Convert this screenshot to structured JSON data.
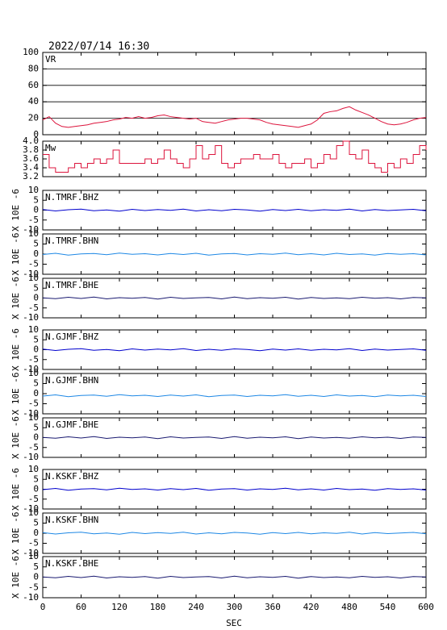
{
  "title": "2022/07/14 16:30",
  "xlabel": "SEC",
  "xlim": [
    0,
    600
  ],
  "xticks": [
    0,
    60,
    120,
    180,
    240,
    300,
    360,
    420,
    480,
    540,
    600
  ],
  "chart_data": [
    {
      "type": "line",
      "grid": true,
      "ylim": [
        0,
        100
      ],
      "yticks": [
        0,
        20,
        40,
        60,
        80,
        100
      ],
      "x": [
        0,
        10,
        20,
        30,
        40,
        50,
        60,
        70,
        80,
        90,
        100,
        110,
        120,
        130,
        140,
        150,
        160,
        170,
        180,
        190,
        200,
        210,
        220,
        230,
        240,
        250,
        260,
        270,
        280,
        290,
        300,
        310,
        320,
        330,
        340,
        350,
        360,
        370,
        380,
        390,
        400,
        410,
        420,
        430,
        440,
        450,
        460,
        470,
        480,
        490,
        500,
        510,
        520,
        530,
        540,
        550,
        560,
        570,
        580,
        590,
        600
      ],
      "series": [
        {
          "name": "VR",
          "color": "#dc143c",
          "values": [
            18,
            22,
            14,
            10,
            9,
            10,
            11,
            12,
            14,
            15,
            16,
            18,
            19,
            21,
            20,
            22,
            20,
            21,
            23,
            24,
            22,
            21,
            20,
            19,
            20,
            16,
            15,
            14,
            16,
            18,
            19,
            20,
            20,
            19,
            18,
            15,
            13,
            12,
            11,
            10,
            9,
            11,
            13,
            18,
            26,
            28,
            29,
            32,
            34,
            30,
            27,
            24,
            20,
            16,
            13,
            12,
            13,
            15,
            18,
            20,
            21
          ]
        }
      ]
    },
    {
      "type": "line",
      "step": true,
      "ylim": [
        3.2,
        4
      ],
      "yticks": [
        3.2,
        3.4,
        3.6,
        3.8,
        {
          "value": 4,
          "label": "4.0"
        }
      ],
      "x": [
        0,
        10,
        20,
        30,
        40,
        50,
        60,
        70,
        80,
        90,
        100,
        110,
        120,
        130,
        140,
        150,
        160,
        170,
        180,
        190,
        200,
        210,
        220,
        230,
        240,
        250,
        260,
        270,
        280,
        290,
        300,
        310,
        320,
        330,
        340,
        350,
        360,
        370,
        380,
        390,
        400,
        410,
        420,
        430,
        440,
        450,
        460,
        470,
        480,
        490,
        500,
        510,
        520,
        530,
        540,
        550,
        560,
        570,
        580,
        590,
        600
      ],
      "series": [
        {
          "name": "Mw",
          "color": "#dc143c",
          "values": [
            3.7,
            3.4,
            3.3,
            3.3,
            3.4,
            3.5,
            3.4,
            3.5,
            3.6,
            3.5,
            3.6,
            3.8,
            3.5,
            3.5,
            3.5,
            3.5,
            3.6,
            3.5,
            3.6,
            3.8,
            3.6,
            3.5,
            3.4,
            3.6,
            3.9,
            3.6,
            3.7,
            3.9,
            3.5,
            3.4,
            3.5,
            3.6,
            3.6,
            3.7,
            3.6,
            3.6,
            3.7,
            3.5,
            3.4,
            3.5,
            3.5,
            3.6,
            3.4,
            3.5,
            3.7,
            3.6,
            3.9,
            4.0,
            3.7,
            3.6,
            3.8,
            3.5,
            3.4,
            3.3,
            3.5,
            3.4,
            3.6,
            3.5,
            3.7,
            3.9,
            3.8
          ]
        }
      ]
    },
    {
      "type": "line",
      "ylabel": "X 10E -6",
      "ylim": [
        -10,
        10
      ],
      "yticks": [
        -10,
        -5,
        0,
        5,
        10
      ],
      "x": [
        0,
        20,
        40,
        60,
        80,
        100,
        120,
        140,
        160,
        180,
        200,
        220,
        240,
        260,
        280,
        300,
        320,
        340,
        360,
        380,
        400,
        420,
        440,
        460,
        480,
        500,
        520,
        540,
        560,
        580,
        600
      ],
      "series": [
        {
          "name": "N.TMRF.BHZ",
          "color": "#0000cd",
          "values": [
            0.3,
            -0.4,
            0.2,
            0.5,
            -0.3,
            0.1,
            -0.5,
            0.4,
            -0.2,
            0.3,
            -0.1,
            0.5,
            -0.4,
            0.2,
            -0.3,
            0.4,
            0.1,
            -0.5,
            0.3,
            -0.2,
            0.4,
            -0.3,
            0.2,
            -0.1,
            0.5,
            -0.4,
            0.3,
            -0.2,
            0.1,
            0.4,
            -0.3
          ]
        }
      ]
    },
    {
      "type": "line",
      "ylabel": "X 10E -6",
      "ylim": [
        -10,
        10
      ],
      "yticks": [
        -10,
        -5,
        0,
        5,
        10
      ],
      "x": [
        0,
        20,
        40,
        60,
        80,
        100,
        120,
        140,
        160,
        180,
        200,
        220,
        240,
        260,
        280,
        300,
        320,
        340,
        360,
        380,
        400,
        420,
        440,
        460,
        480,
        500,
        520,
        540,
        560,
        580,
        600
      ],
      "series": [
        {
          "name": "N.TMRF.BHN",
          "color": "#1e88e5",
          "values": [
            -0.2,
            0.4,
            -0.5,
            0.1,
            0.3,
            -0.3,
            0.5,
            -0.1,
            0.2,
            -0.4,
            0.3,
            -0.2,
            0.4,
            -0.5,
            0.1,
            0.3,
            -0.4,
            0.2,
            -0.1,
            0.5,
            -0.3,
            0.2,
            -0.4,
            0.4,
            -0.2,
            0.1,
            -0.5,
            0.3,
            -0.1,
            0.2,
            -0.4
          ]
        }
      ]
    },
    {
      "type": "line",
      "ylabel": "X 10E -6",
      "ylim": [
        -10,
        10
      ],
      "yticks": [
        -10,
        -5,
        0,
        5,
        10
      ],
      "x": [
        0,
        20,
        40,
        60,
        80,
        100,
        120,
        140,
        160,
        180,
        200,
        220,
        240,
        260,
        280,
        300,
        320,
        340,
        360,
        380,
        400,
        420,
        440,
        460,
        480,
        500,
        520,
        540,
        560,
        580,
        600
      ],
      "series": [
        {
          "name": "N.TMRF.BHE",
          "color": "#191970",
          "values": [
            0.1,
            -0.3,
            0.4,
            -0.2,
            0.5,
            -0.4,
            0.2,
            -0.1,
            0.3,
            -0.5,
            0.4,
            -0.2,
            0.1,
            0.3,
            -0.4,
            0.5,
            -0.3,
            0.2,
            -0.1,
            0.4,
            -0.5,
            0.3,
            -0.2,
            0.1,
            -0.3,
            0.4,
            -0.1,
            0.2,
            -0.4,
            0.3,
            0.1
          ]
        }
      ]
    },
    {
      "type": "line",
      "ylabel": "X 10E -6",
      "ylim": [
        -10,
        10
      ],
      "yticks": [
        -10,
        -5,
        0,
        5,
        10
      ],
      "x": [
        0,
        20,
        40,
        60,
        80,
        100,
        120,
        140,
        160,
        180,
        200,
        220,
        240,
        260,
        280,
        300,
        320,
        340,
        360,
        380,
        400,
        420,
        440,
        460,
        480,
        500,
        520,
        540,
        560,
        580,
        600
      ],
      "series": [
        {
          "name": "N.GJMF.BHZ",
          "color": "#0000cd",
          "values": [
            0.3,
            -0.4,
            0.2,
            0.5,
            -0.3,
            0.1,
            -0.5,
            0.4,
            -0.2,
            0.3,
            -0.1,
            0.5,
            -0.4,
            0.2,
            -0.3,
            0.4,
            0.1,
            -0.5,
            0.3,
            -0.2,
            0.4,
            -0.3,
            0.2,
            -0.1,
            0.5,
            -0.4,
            0.3,
            -0.2,
            0.1,
            0.4,
            -0.3
          ]
        }
      ]
    },
    {
      "type": "line",
      "ylabel": "X 10E -6",
      "ylim": [
        -10,
        10
      ],
      "yticks": [
        -10,
        -5,
        0,
        5,
        10
      ],
      "x": [
        0,
        20,
        40,
        60,
        80,
        100,
        120,
        140,
        160,
        180,
        200,
        220,
        240,
        260,
        280,
        300,
        320,
        340,
        360,
        380,
        400,
        420,
        440,
        460,
        480,
        500,
        520,
        540,
        560,
        580,
        600
      ],
      "series": [
        {
          "name": "N.GJMF.BHN",
          "color": "#1e88e5",
          "values": [
            -1.2,
            -0.6,
            -1.5,
            -0.9,
            -0.7,
            -1.3,
            -0.5,
            -1.1,
            -0.8,
            -1.4,
            -0.7,
            -1.2,
            -0.6,
            -1.5,
            -0.9,
            -0.7,
            -1.4,
            -0.8,
            -1.1,
            -0.5,
            -1.3,
            -0.8,
            -1.4,
            -0.6,
            -1.2,
            -0.9,
            -1.5,
            -0.7,
            -1.1,
            -0.8,
            -1.4
          ]
        }
      ]
    },
    {
      "type": "line",
      "ylabel": "X 10E -6",
      "ylim": [
        -10,
        10
      ],
      "yticks": [
        -10,
        -5,
        0,
        5,
        10
      ],
      "x": [
        0,
        20,
        40,
        60,
        80,
        100,
        120,
        140,
        160,
        180,
        200,
        220,
        240,
        260,
        280,
        300,
        320,
        340,
        360,
        380,
        400,
        420,
        440,
        460,
        480,
        500,
        520,
        540,
        560,
        580,
        600
      ],
      "series": [
        {
          "name": "N.GJMF.BHE",
          "color": "#191970",
          "values": [
            0.1,
            -0.3,
            0.4,
            -0.2,
            0.5,
            -0.4,
            0.2,
            -0.1,
            0.3,
            -0.5,
            0.4,
            -0.2,
            0.1,
            0.3,
            -0.4,
            0.5,
            -0.3,
            0.2,
            -0.1,
            0.4,
            -0.5,
            0.3,
            -0.2,
            0.1,
            -0.3,
            0.4,
            -0.1,
            0.2,
            -0.4,
            0.3,
            0.1
          ]
        }
      ]
    },
    {
      "type": "line",
      "ylabel": "X 10E -6",
      "ylim": [
        -10,
        10
      ],
      "yticks": [
        -10,
        -5,
        0,
        5,
        10
      ],
      "x": [
        0,
        20,
        40,
        60,
        80,
        100,
        120,
        140,
        160,
        180,
        200,
        220,
        240,
        260,
        280,
        300,
        320,
        340,
        360,
        380,
        400,
        420,
        440,
        460,
        480,
        500,
        520,
        540,
        560,
        580,
        600
      ],
      "series": [
        {
          "name": "N.KSKF.BHZ",
          "color": "#0000cd",
          "values": [
            -0.2,
            0.4,
            -0.5,
            0.1,
            0.3,
            -0.3,
            0.5,
            -0.1,
            0.2,
            -0.4,
            0.3,
            -0.2,
            0.4,
            -0.5,
            0.1,
            0.3,
            -0.4,
            0.2,
            -0.1,
            0.5,
            -0.3,
            0.2,
            -0.4,
            0.4,
            -0.2,
            0.1,
            -0.5,
            0.3,
            -0.1,
            0.2,
            -0.4
          ]
        }
      ]
    },
    {
      "type": "line",
      "ylabel": "X 10E -6",
      "ylim": [
        -10,
        10
      ],
      "yticks": [
        -10,
        -5,
        0,
        5,
        10
      ],
      "x": [
        0,
        20,
        40,
        60,
        80,
        100,
        120,
        140,
        160,
        180,
        200,
        220,
        240,
        260,
        280,
        300,
        320,
        340,
        360,
        380,
        400,
        420,
        440,
        460,
        480,
        500,
        520,
        540,
        560,
        580,
        600
      ],
      "series": [
        {
          "name": "N.KSKF.BHN",
          "color": "#1e88e5",
          "values": [
            0.3,
            -0.4,
            0.2,
            0.5,
            -0.3,
            0.1,
            -0.5,
            0.4,
            -0.2,
            0.3,
            -0.1,
            0.5,
            -0.4,
            0.2,
            -0.3,
            0.4,
            0.1,
            -0.5,
            0.3,
            -0.2,
            0.4,
            -0.3,
            0.2,
            -0.1,
            0.5,
            -0.4,
            0.3,
            -0.2,
            0.1,
            0.4,
            -0.3
          ]
        }
      ]
    },
    {
      "type": "line",
      "ylabel": "X 10E -6",
      "ylim": [
        -10,
        10
      ],
      "yticks": [
        -10,
        -5,
        0,
        5,
        10
      ],
      "x": [
        0,
        20,
        40,
        60,
        80,
        100,
        120,
        140,
        160,
        180,
        200,
        220,
        240,
        260,
        280,
        300,
        320,
        340,
        360,
        380,
        400,
        420,
        440,
        460,
        480,
        500,
        520,
        540,
        560,
        580,
        600
      ],
      "series": [
        {
          "name": "N.KSKF.BHE",
          "color": "#191970",
          "values": [
            0.1,
            -0.3,
            0.4,
            -0.2,
            0.5,
            -0.4,
            0.2,
            -0.1,
            0.3,
            -0.5,
            0.4,
            -0.2,
            0.1,
            0.3,
            -0.4,
            0.5,
            -0.3,
            0.2,
            -0.1,
            0.4,
            -0.5,
            0.3,
            -0.2,
            0.1,
            -0.3,
            0.4,
            -0.1,
            0.2,
            -0.4,
            0.3,
            0.1
          ]
        }
      ]
    }
  ]
}
